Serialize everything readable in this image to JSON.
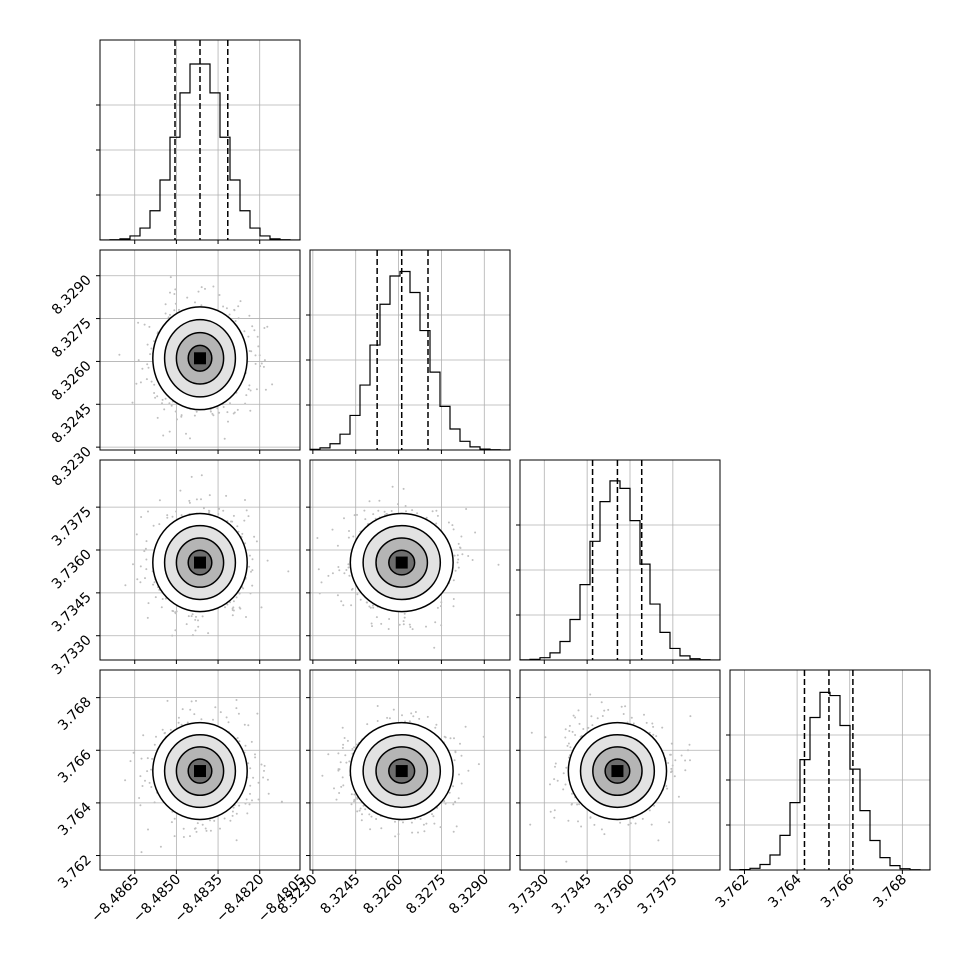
{
  "chart_data": {
    "type": "corner",
    "parameters": [
      {
        "range": [
          -8.48775,
          -8.48055
        ],
        "ticks": [
          -8.4865,
          -8.485,
          -8.4835,
          -8.482,
          -8.4805
        ],
        "tick_labels": [
          "−8.4865",
          "−8.4850",
          "−8.4835",
          "−8.4820",
          "−8.4805"
        ],
        "quantiles": [
          -8.48505,
          -8.48415,
          -8.48315
        ],
        "peak": -8.48415,
        "std": 0.00085
      },
      {
        "range": [
          8.3229,
          8.3299
        ],
        "ticks": [
          8.323,
          8.3245,
          8.326,
          8.3275,
          8.329
        ],
        "tick_labels": [
          "8.3230",
          "8.3245",
          "8.3260",
          "8.3275",
          "8.3290"
        ],
        "quantiles": [
          8.32525,
          8.32611,
          8.32703
        ],
        "peak": 8.32611,
        "std": 0.0009
      },
      {
        "range": [
          3.73215,
          3.73915
        ],
        "ticks": [
          3.733,
          3.7345,
          3.736,
          3.7375
        ],
        "tick_labels": [
          "3.7330",
          "3.7345",
          "3.7360",
          "3.7375"
        ],
        "quantiles": [
          3.73469,
          3.73556,
          3.73641
        ],
        "peak": 3.73556,
        "std": 0.00086
      },
      {
        "range": [
          3.76145,
          3.76905
        ],
        "ticks": [
          3.762,
          3.764,
          3.766,
          3.768
        ],
        "tick_labels": [
          "3.762",
          "3.764",
          "3.766",
          "3.768"
        ],
        "quantiles": [
          3.76428,
          3.76521,
          3.76612
        ],
        "peak": 3.76521,
        "std": 0.00092
      }
    ],
    "grid": true,
    "colors": {
      "contour": "#000000",
      "scatter": "#bfbfbf",
      "grid": "#b0b0b0",
      "density_dark": "#000000"
    }
  }
}
